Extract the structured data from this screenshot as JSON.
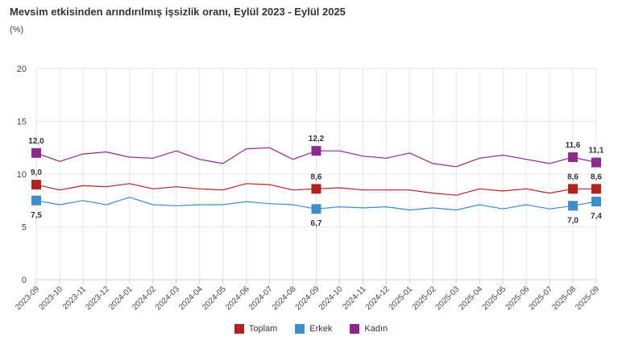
{
  "chart_data": {
    "type": "line",
    "title": "Mevsim etkisinden arındırılmış işsizlik oranı, Eylül 2023 - Eylül 2025",
    "subtitle": "(%)",
    "ylim": [
      0,
      20
    ],
    "yticks": [
      "0",
      "5",
      "10",
      "15",
      "20"
    ],
    "grid": true,
    "legend_position": "bottom",
    "categories": [
      "2023-09",
      "2023-10",
      "2023-11",
      "2023-12",
      "2024-01",
      "2024-02",
      "2024-03",
      "2024-04",
      "2024-05",
      "2024-06",
      "2024-07",
      "2024-08",
      "2024-09",
      "2024-10",
      "2024-11",
      "2024-12",
      "2025-01",
      "2025-02",
      "2025-03",
      "2025-04",
      "2025-05",
      "2025-06",
      "2025-07",
      "2025-08",
      "2025-09"
    ],
    "series": [
      {
        "name": "Toplam",
        "color": "#b22222",
        "values": [
          9.0,
          8.5,
          8.9,
          8.8,
          9.1,
          8.6,
          8.8,
          8.6,
          8.5,
          9.1,
          9.0,
          8.5,
          8.6,
          8.7,
          8.5,
          8.5,
          8.5,
          8.2,
          8.0,
          8.6,
          8.4,
          8.6,
          8.2,
          8.6,
          8.6
        ],
        "markers": [
          {
            "index": 0,
            "label": "9,0",
            "pos": "above"
          },
          {
            "index": 12,
            "label": "8,6",
            "pos": "above"
          },
          {
            "index": 23,
            "label": "8,6",
            "pos": "above"
          },
          {
            "index": 24,
            "label": "8,6",
            "pos": "above"
          }
        ]
      },
      {
        "name": "Erkek",
        "color": "#3b8ec8",
        "values": [
          7.5,
          7.1,
          7.5,
          7.1,
          7.8,
          7.1,
          7.0,
          7.1,
          7.1,
          7.4,
          7.2,
          7.1,
          6.7,
          6.9,
          6.8,
          6.9,
          6.6,
          6.8,
          6.6,
          7.1,
          6.7,
          7.1,
          6.7,
          7.0,
          7.4
        ],
        "markers": [
          {
            "index": 0,
            "label": "7,5",
            "pos": "below"
          },
          {
            "index": 12,
            "label": "6,7",
            "pos": "below"
          },
          {
            "index": 23,
            "label": "7,0",
            "pos": "below"
          },
          {
            "index": 24,
            "label": "7,4",
            "pos": "below"
          }
        ]
      },
      {
        "name": "Kadın",
        "color": "#8e2a8e",
        "values": [
          12.0,
          11.2,
          11.9,
          12.1,
          11.6,
          11.5,
          12.2,
          11.4,
          11.0,
          12.4,
          12.5,
          11.4,
          12.2,
          12.2,
          11.7,
          11.5,
          12.0,
          11.0,
          10.7,
          11.5,
          11.8,
          11.4,
          11.0,
          11.6,
          11.1
        ],
        "markers": [
          {
            "index": 0,
            "label": "12,0",
            "pos": "above"
          },
          {
            "index": 12,
            "label": "12,2",
            "pos": "above"
          },
          {
            "index": 23,
            "label": "11,6",
            "pos": "above"
          },
          {
            "index": 24,
            "label": "11,1",
            "pos": "above"
          }
        ]
      }
    ]
  }
}
